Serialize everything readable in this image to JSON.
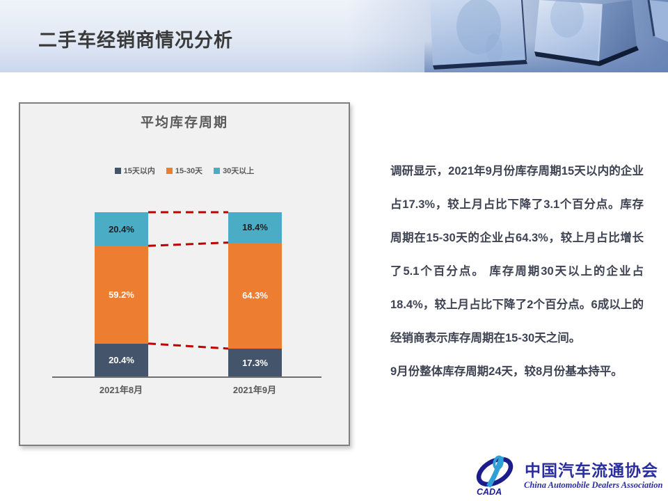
{
  "header": {
    "title": "二手车经销商情况分析"
  },
  "chart_data": {
    "type": "bar",
    "stacked": true,
    "title": "平均库存周期",
    "categories": [
      "2021年8月",
      "2021年9月"
    ],
    "series": [
      {
        "name": "15天以内",
        "values": [
          20.4,
          17.3
        ],
        "color": "#44546A",
        "label_color": "#FFFFFF"
      },
      {
        "name": "15-30天",
        "values": [
          59.2,
          64.3
        ],
        "color": "#ED7D31",
        "label_color": "#FFFFFF"
      },
      {
        "name": "30天以上",
        "values": [
          20.4,
          18.4
        ],
        "color": "#4BACC6",
        "label_color": "#1F1F1F"
      }
    ],
    "value_suffix": "%",
    "ylim": [
      0,
      100
    ],
    "legend_position": "top",
    "grid": false,
    "connectors": {
      "style": "dashed",
      "color": "#C00000",
      "description": "red dashed lines linking segment boundaries between the two bars"
    }
  },
  "commentary": {
    "text": "调研显示，2021年9月份库存周期15天以内的企业占17.3%，较上月占比下降了3.1个百分点。库存周期在15-30天的企业占64.3%，较上月占比增长了5.1个百分点。 库存周期30天以上的企业占18.4%，较上月占比下降了2个百分点。6成以上的经销商表示库存周期在15-30天之间。\n9月份整体库存周期24天，较8月份基本持平。"
  },
  "logo": {
    "cada_acronym": "CADA",
    "name_cn": "中国汽车流通协会",
    "name_en": "China Automobile Dealers Association"
  },
  "colors": {
    "accent_navy": "#44546A",
    "accent_orange": "#ED7D31",
    "accent_teal": "#4BACC6",
    "connector_red": "#C00000",
    "logo_blue": "#2A2D9E",
    "logo_light_blue": "#2F9FD6"
  }
}
